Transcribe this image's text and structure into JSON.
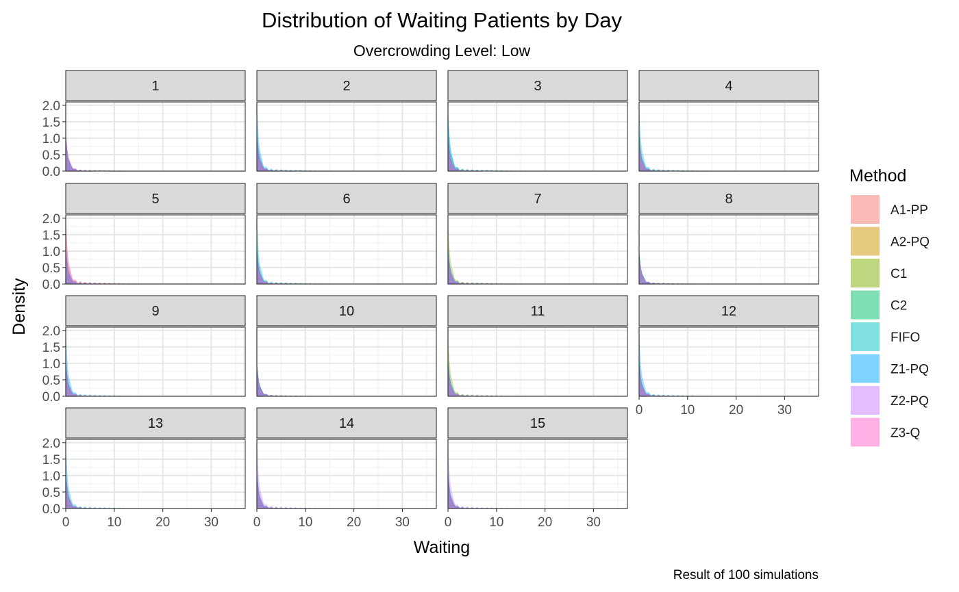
{
  "chart_data": {
    "type": "area",
    "title": "Distribution of Waiting Patients by Day",
    "subtitle": "Overcrowding Level: Low",
    "xlabel": "Waiting",
    "ylabel": "Density",
    "caption": "Result of 100 simulations",
    "xlim": [
      0,
      37
    ],
    "ylim": [
      0,
      2.1
    ],
    "x_ticks": [
      0,
      10,
      20,
      30
    ],
    "y_ticks": [
      0.0,
      0.5,
      1.0,
      1.5,
      2.0
    ],
    "x_tick_labels": [
      "0",
      "10",
      "20",
      "30"
    ],
    "y_tick_labels": [
      "0.0",
      "0.5",
      "1.0",
      "1.5",
      "2.0"
    ],
    "grid": true,
    "facet_variable": "Day",
    "facets": [
      "1",
      "2",
      "3",
      "4",
      "5",
      "6",
      "7",
      "8",
      "9",
      "10",
      "11",
      "12",
      "13",
      "14",
      "15"
    ],
    "legend": {
      "title": "Method",
      "position": "right",
      "entries": [
        "A1-PP",
        "A2-PQ",
        "C1",
        "C2",
        "FIFO",
        "Z1-PQ",
        "Z2-PQ",
        "Z3-Q"
      ]
    },
    "series": [
      {
        "name": "A1-PP",
        "color": "#F8766D"
      },
      {
        "name": "A2-PQ",
        "color": "#CD9600"
      },
      {
        "name": "C1",
        "color": "#7CAE00"
      },
      {
        "name": "C2",
        "color": "#00BE67"
      },
      {
        "name": "FIFO",
        "color": "#00BFC4"
      },
      {
        "name": "Z1-PQ",
        "color": "#00A9FF"
      },
      {
        "name": "Z2-PQ",
        "color": "#C77CFF"
      },
      {
        "name": "Z3-Q",
        "color": "#FF61CC"
      }
    ],
    "peak_density_by_day": [
      [
        1.2,
        1.1,
        1.0,
        1.0,
        1.1,
        1.0,
        1.2,
        1.1
      ],
      [
        1.0,
        1.0,
        1.2,
        1.1,
        1.3,
        2.0,
        1.0,
        1.1
      ],
      [
        1.1,
        1.0,
        1.2,
        1.1,
        1.9,
        1.8,
        1.0,
        1.1
      ],
      [
        1.0,
        1.0,
        1.1,
        1.1,
        1.9,
        1.2,
        1.0,
        1.0
      ],
      [
        2.0,
        1.0,
        1.1,
        1.0,
        1.1,
        1.2,
        1.0,
        1.9
      ],
      [
        1.0,
        1.0,
        1.1,
        1.1,
        1.9,
        1.2,
        1.0,
        1.0
      ],
      [
        1.0,
        1.0,
        1.9,
        1.1,
        1.1,
        1.2,
        1.0,
        1.0
      ],
      [
        0.9,
        0.9,
        1.0,
        1.0,
        1.0,
        1.0,
        0.9,
        0.9
      ],
      [
        1.0,
        1.0,
        1.1,
        1.1,
        1.1,
        1.9,
        1.0,
        1.0
      ],
      [
        0.9,
        0.9,
        1.0,
        1.0,
        1.0,
        1.0,
        0.9,
        0.9
      ],
      [
        1.0,
        1.0,
        1.9,
        1.1,
        1.1,
        1.2,
        1.0,
        1.0
      ],
      [
        1.0,
        1.0,
        1.1,
        1.1,
        1.1,
        1.9,
        1.0,
        1.0
      ],
      [
        1.0,
        1.0,
        1.1,
        1.1,
        1.1,
        1.9,
        1.0,
        1.0
      ],
      [
        1.0,
        1.0,
        1.1,
        1.1,
        1.1,
        1.2,
        2.0,
        1.0
      ],
      [
        1.0,
        1.0,
        1.1,
        1.1,
        1.1,
        1.2,
        1.9,
        1.0
      ]
    ]
  }
}
